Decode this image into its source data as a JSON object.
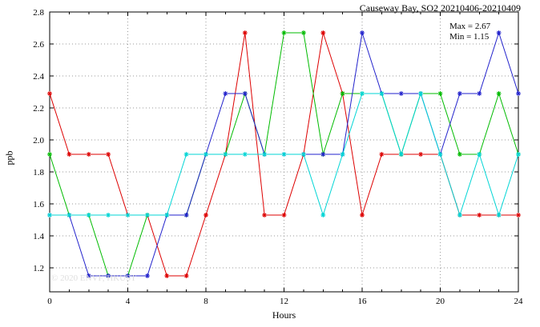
{
  "title": "Causeway Bay, SO2 20210406-20210409",
  "annotations": {
    "max": "Max = 2.67",
    "min": "Min = 1.15"
  },
  "watermark": "© 2020 ENVF, HKUST",
  "chart_data": {
    "type": "line",
    "title": "Causeway Bay, SO2 20210406-20210409",
    "xlabel": "Hours",
    "ylabel": "ppb",
    "xlim": [
      0,
      24
    ],
    "ylim": [
      1.05,
      2.8
    ],
    "x_ticks": [
      0,
      4,
      8,
      12,
      16,
      20,
      24
    ],
    "x_tick_labels": [
      "0",
      "4",
      "8",
      "12",
      "16",
      "20",
      "24"
    ],
    "y_ticks": [
      1.2,
      1.4,
      1.6,
      1.8,
      2.0,
      2.2,
      2.4,
      2.6,
      2.8
    ],
    "y_tick_labels": [
      "1.2",
      "1.4",
      "1.6",
      "1.8",
      "2.0",
      "2.2",
      "2.4",
      "2.6",
      "2.8"
    ],
    "grid": true,
    "legend": "none",
    "marker": "asterisk",
    "max_value": 2.67,
    "min_value": 1.15,
    "x": [
      0,
      1,
      2,
      3,
      4,
      5,
      6,
      7,
      8,
      9,
      10,
      11,
      12,
      13,
      14,
      15,
      16,
      17,
      18,
      19,
      20,
      21,
      22,
      23,
      24
    ],
    "series": [
      {
        "name": "red",
        "color": "#dd0000",
        "values": [
          2.29,
          1.91,
          1.91,
          1.91,
          1.53,
          1.53,
          1.15,
          1.15,
          1.53,
          1.91,
          2.67,
          1.53,
          1.53,
          1.91,
          2.67,
          2.29,
          1.53,
          1.91,
          1.91,
          1.91,
          1.91,
          1.53,
          1.53,
          1.53,
          1.53
        ]
      },
      {
        "name": "green",
        "color": "#00bb00",
        "values": [
          1.91,
          1.53,
          1.53,
          1.15,
          1.15,
          1.53,
          1.53,
          1.53,
          1.91,
          1.91,
          2.29,
          1.91,
          2.67,
          2.67,
          1.91,
          2.29,
          2.29,
          2.29,
          1.91,
          2.29,
          2.29,
          1.91,
          1.91,
          2.29,
          1.91
        ]
      },
      {
        "name": "blue",
        "color": "#2222cc",
        "values": [
          1.53,
          1.53,
          1.15,
          1.15,
          1.15,
          1.15,
          1.53,
          1.53,
          1.91,
          2.29,
          2.29,
          1.91,
          1.91,
          1.91,
          1.91,
          1.91,
          2.67,
          2.29,
          2.29,
          2.29,
          1.91,
          2.29,
          2.29,
          2.67,
          2.29
        ]
      },
      {
        "name": "cyan",
        "color": "#00d5d5",
        "values": [
          1.53,
          1.53,
          1.53,
          1.53,
          1.53,
          1.53,
          1.53,
          1.91,
          1.91,
          1.91,
          1.91,
          1.91,
          1.91,
          1.91,
          1.53,
          1.91,
          2.29,
          2.29,
          1.91,
          2.29,
          1.91,
          1.53,
          1.91,
          1.53,
          1.91
        ]
      }
    ]
  }
}
